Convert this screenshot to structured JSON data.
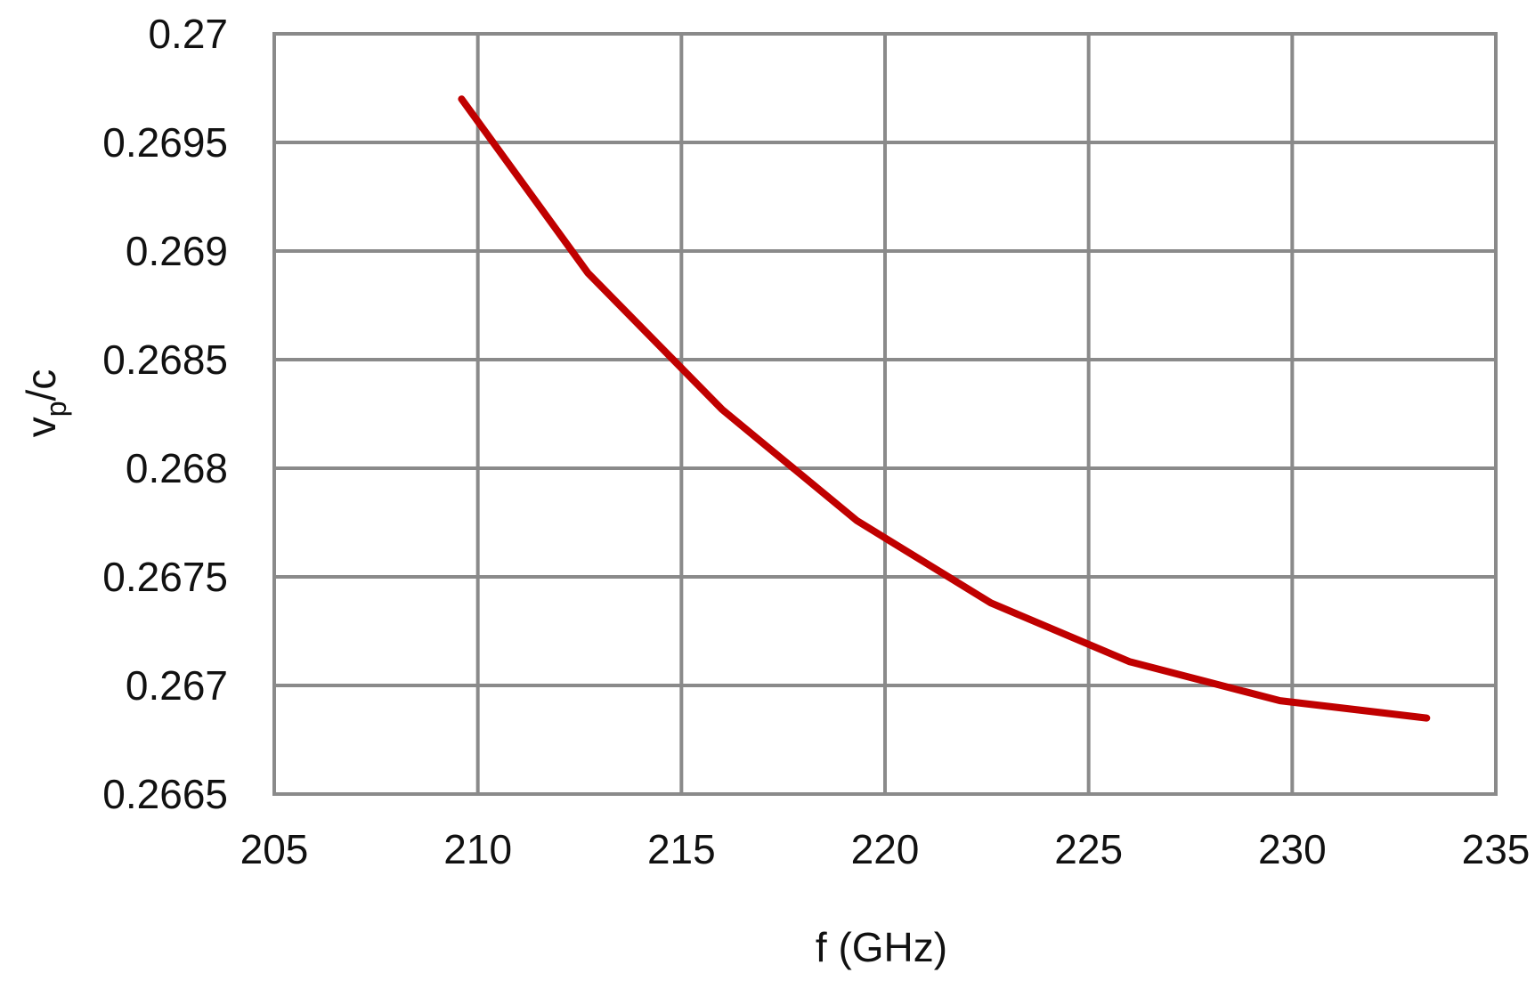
{
  "chart_data": {
    "type": "line",
    "xlabel": "f (GHz)",
    "ylabel_main": "v",
    "ylabel_sub": "p",
    "ylabel_tail": "/c",
    "xlim": [
      205,
      235
    ],
    "ylim": [
      0.2665,
      0.27
    ],
    "x_ticks": [
      "205",
      "210",
      "215",
      "220",
      "225",
      "230",
      "235"
    ],
    "y_ticks": [
      "0.27",
      "0.2695",
      "0.269",
      "0.2685",
      "0.268",
      "0.2675",
      "0.267",
      "0.2665"
    ],
    "grid": true,
    "series": [
      {
        "color": "#c00000",
        "points": [
          [
            209.6,
            0.2697
          ],
          [
            212.7,
            0.2689
          ],
          [
            216.0,
            0.26827
          ],
          [
            219.3,
            0.26776
          ],
          [
            222.6,
            0.26738
          ],
          [
            226.0,
            0.26711
          ],
          [
            229.7,
            0.26693
          ],
          [
            233.3,
            0.26685
          ]
        ]
      }
    ]
  }
}
